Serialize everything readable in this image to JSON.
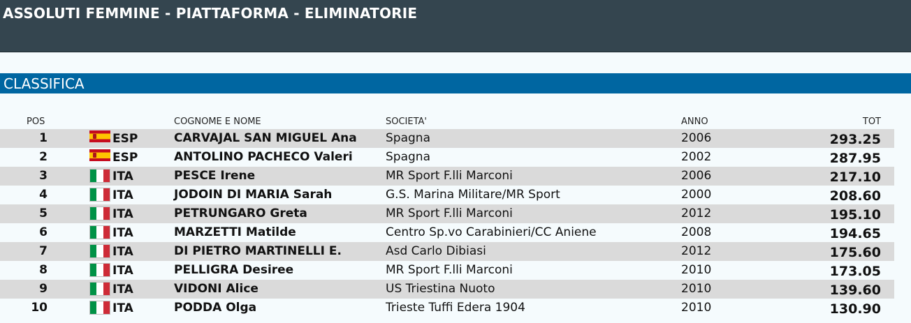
{
  "header": {
    "title": "ASSOLUTI FEMMINE - PIATTAFORMA - ELIMINATORIE"
  },
  "section": {
    "title": "CLASSIFICA"
  },
  "table": {
    "columns": {
      "pos": "POS",
      "name": "COGNOME E NOME",
      "club": "SOCIETA'",
      "year": "ANNO",
      "total": "TOT"
    },
    "rows": [
      {
        "pos": "1",
        "flag": "spain-flag-icon",
        "nation": "ESP",
        "name": "CARVAJAL SAN MIGUEL Ana",
        "club": "Spagna",
        "year": "2006",
        "total": "293.25"
      },
      {
        "pos": "2",
        "flag": "spain-flag-icon",
        "nation": "ESP",
        "name": "ANTOLINO PACHECO Valeri",
        "club": "Spagna",
        "year": "2002",
        "total": "287.95"
      },
      {
        "pos": "3",
        "flag": "italy-flag-icon",
        "nation": "ITA",
        "name": "PESCE Irene",
        "club": "MR Sport F.lli Marconi",
        "year": "2006",
        "total": "217.10"
      },
      {
        "pos": "4",
        "flag": "italy-flag-icon",
        "nation": "ITA",
        "name": "JODOIN DI MARIA Sarah",
        "club": "G.S. Marina Militare/MR Sport",
        "year": "2000",
        "total": "208.60"
      },
      {
        "pos": "5",
        "flag": "italy-flag-icon",
        "nation": "ITA",
        "name": "PETRUNGARO Greta",
        "club": "MR Sport F.lli Marconi",
        "year": "2012",
        "total": "195.10"
      },
      {
        "pos": "6",
        "flag": "italy-flag-icon",
        "nation": "ITA",
        "name": "MARZETTI Matilde",
        "club": "Centro Sp.vo Carabinieri/CC Aniene",
        "year": "2008",
        "total": "194.65"
      },
      {
        "pos": "7",
        "flag": "italy-flag-icon",
        "nation": "ITA",
        "name": "DI PIETRO MARTINELLI E.",
        "club": "Asd Carlo Dibiasi",
        "year": "2012",
        "total": "175.60"
      },
      {
        "pos": "8",
        "flag": "italy-flag-icon",
        "nation": "ITA",
        "name": "PELLIGRA Desiree",
        "club": "MR Sport F.lli Marconi",
        "year": "2010",
        "total": "173.05"
      },
      {
        "pos": "9",
        "flag": "italy-flag-icon",
        "nation": "ITA",
        "name": "VIDONI Alice",
        "club": "US Triestina Nuoto",
        "year": "2010",
        "total": "139.60"
      },
      {
        "pos": "10",
        "flag": "italy-flag-icon",
        "nation": "ITA",
        "name": "PODDA Olga",
        "club": "Trieste Tuffi Edera 1904",
        "year": "2010",
        "total": "130.90"
      }
    ]
  }
}
